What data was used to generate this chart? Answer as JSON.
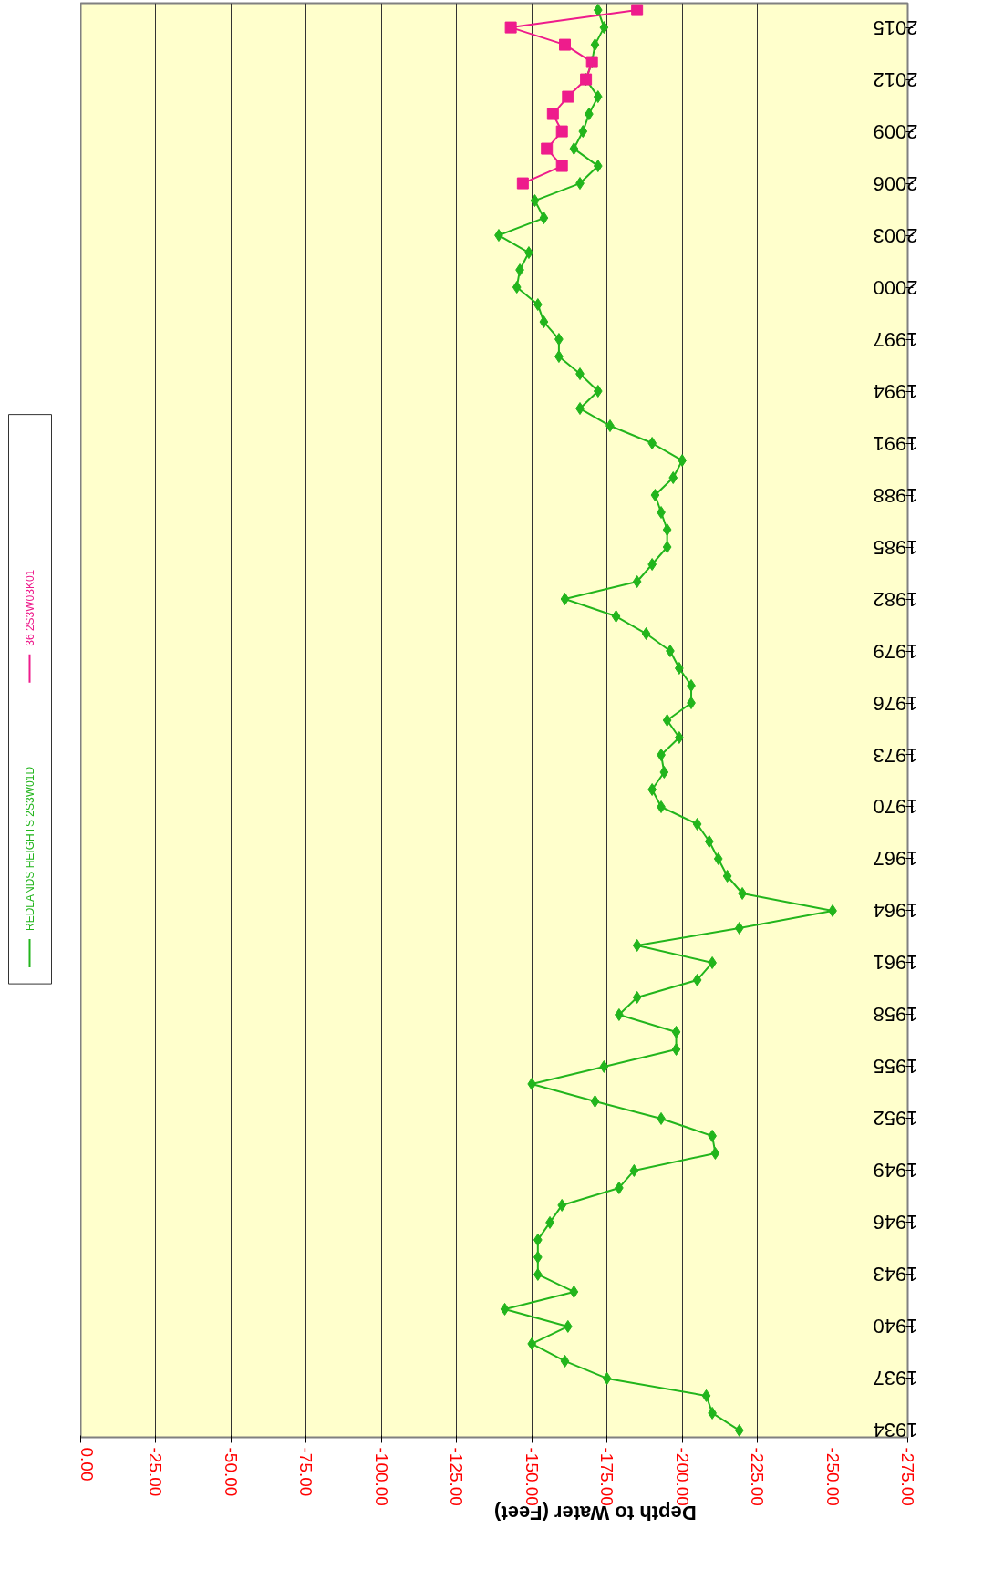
{
  "chart_data": {
    "type": "line",
    "xlabel": "Depth to Water (Feet)",
    "series": [
      {
        "name": "REDLANDS HEIGHTS 2S3W01D",
        "color": "#22b51c",
        "marker": "diamond",
        "x": [
          -219,
          -210,
          -208,
          -175,
          -161,
          -150,
          -162,
          -141,
          -164,
          -152,
          -152,
          -152,
          -156,
          -160,
          -179,
          -184,
          -211,
          -210,
          -193,
          -171,
          -150,
          -174,
          -198,
          -198,
          -179,
          -185,
          -205,
          -210,
          -185,
          -219,
          -250,
          -220,
          -215,
          -212,
          -209,
          -205,
          -193,
          -190,
          -194,
          -193,
          -199,
          -195,
          -203,
          -203,
          -199,
          -196,
          -188,
          -178,
          -161,
          -185,
          -190,
          -195,
          -195,
          -193,
          -191,
          -197,
          -200,
          -190,
          -176,
          -166,
          -172,
          -166,
          -159,
          -159,
          -154,
          -152,
          -145,
          -146,
          -149,
          -139,
          -154,
          -151,
          -166,
          -172,
          -164,
          -167,
          -169,
          -172,
          -168,
          -170,
          -171,
          -174,
          -172
        ],
        "values": [
          1934,
          1935,
          1936,
          1937,
          1938,
          1939,
          1940,
          1941,
          1942,
          1943,
          1944,
          1945,
          1946,
          1947,
          1948,
          1949,
          1950,
          1951,
          1952,
          1953,
          1954,
          1955,
          1956,
          1957,
          1958,
          1959,
          1960,
          1961,
          1962,
          1963,
          1964,
          1965,
          1966,
          1967,
          1968,
          1969,
          1970,
          1971,
          1972,
          1973,
          1974,
          1975,
          1976,
          1977,
          1978,
          1979,
          1980,
          1981,
          1982,
          1983,
          1984,
          1985,
          1986,
          1987,
          1988,
          1989,
          1990,
          1991,
          1992,
          1993,
          1994,
          1995,
          1996,
          1997,
          1998,
          1999,
          2000,
          2001,
          2002,
          2003,
          2004,
          2005,
          2006,
          2007,
          2008,
          2009,
          2010,
          2011,
          2012,
          2013,
          2014,
          2015,
          2016
        ]
      },
      {
        "name": "36 2S3W03K01",
        "color": "#ee1c8c",
        "marker": "square",
        "x": [
          -147,
          -160,
          -155,
          -160,
          -157,
          -162,
          -168,
          -170,
          -161,
          -143,
          -185
        ],
        "values": [
          2006,
          2007,
          2008,
          2009,
          2010,
          2011,
          2012,
          2013,
          2014,
          2015,
          2016
        ]
      }
    ],
    "ylim": [
      1933.6,
      2016.4
    ],
    "yticks": [
      1934,
      1937,
      1940,
      1943,
      1946,
      1949,
      1952,
      1955,
      1958,
      1961,
      1964,
      1967,
      1970,
      1973,
      1976,
      1979,
      1982,
      1985,
      1988,
      1991,
      1994,
      1997,
      2000,
      2003,
      2006,
      2009,
      2012,
      2015
    ],
    "xlim": [
      0,
      -275
    ],
    "xticks": [
      {
        "value": 0,
        "label": "0.00"
      },
      {
        "value": -25,
        "label": "-25.00"
      },
      {
        "value": -50,
        "label": "-50.00"
      },
      {
        "value": -75,
        "label": "-75.00"
      },
      {
        "value": -100,
        "label": "-100.00"
      },
      {
        "value": -125,
        "label": "-125.00"
      },
      {
        "value": -150,
        "label": "-150.00"
      },
      {
        "value": -175,
        "label": "-175.00"
      },
      {
        "value": -200,
        "label": "-200.00"
      },
      {
        "value": -225,
        "label": "-225.00"
      },
      {
        "value": -250,
        "label": "-250.00"
      },
      {
        "value": -275,
        "label": "-275.00"
      }
    ],
    "grid": "x",
    "legend": "left",
    "line_style": "solid"
  }
}
